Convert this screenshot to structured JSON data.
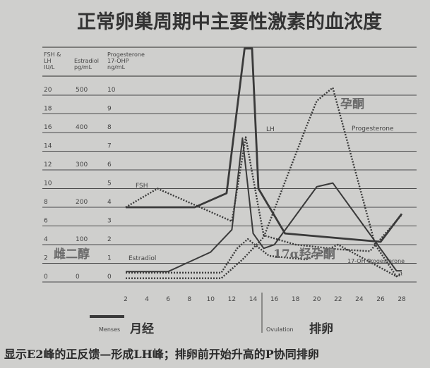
{
  "title": "正常卵巢周期中主要性激素的血浓度",
  "caption": "显示E2峰的正反馈—形成LH峰；排卵前开始升高的P协同排卵",
  "colors": {
    "background": "#cfcfcd",
    "ink": "#3a3a3a",
    "grid": "#4a4a4a",
    "overlay_text": "#6a6a6a"
  },
  "chart_data": {
    "type": "line",
    "xlabel": "",
    "x_ticks": [
      "2",
      "4",
      "6",
      "8",
      "10",
      "12",
      "14",
      "16",
      "18",
      "20",
      "22",
      "24",
      "26",
      "28"
    ],
    "xlim": [
      2,
      28
    ],
    "axes": [
      {
        "header": [
          "FSH &",
          "LH",
          "IU/L"
        ],
        "ticks": [
          "20",
          "18",
          "16",
          "14",
          "12",
          "10",
          "8",
          "6",
          "4",
          "2",
          "0"
        ],
        "ylim": [
          0,
          20
        ]
      },
      {
        "header": [
          "",
          "Estradiol",
          "pg/mL"
        ],
        "ticks": [
          "500",
          "",
          "400",
          "",
          "300",
          "",
          "200",
          "",
          "100",
          "",
          "0"
        ],
        "ylim": [
          0,
          500
        ]
      },
      {
        "header": [
          "Progesterone",
          "17-OHP",
          "ng/mL"
        ],
        "ticks": [
          "10",
          "9",
          "8",
          "7",
          "6",
          "5",
          "4",
          "3",
          "2",
          "1",
          "0"
        ],
        "ylim": [
          0,
          10
        ]
      }
    ],
    "grid": true,
    "series": [
      {
        "name": "LH",
        "axis": 0,
        "style": "solid",
        "points": [
          [
            2,
            8
          ],
          [
            8.5,
            8
          ],
          [
            11.5,
            9.5
          ],
          [
            13.2,
            25
          ],
          [
            13.9,
            25
          ],
          [
            14.5,
            10
          ],
          [
            17,
            5.2
          ],
          [
            26,
            4.3
          ],
          [
            28,
            7.3
          ]
        ]
      },
      {
        "name": "FSH",
        "axis": 0,
        "style": "dotted",
        "points": [
          [
            2,
            8
          ],
          [
            5,
            10
          ],
          [
            12,
            6.5
          ],
          [
            13.3,
            15.5
          ],
          [
            14.5,
            8
          ],
          [
            15,
            5
          ],
          [
            18,
            4
          ],
          [
            22,
            3.5
          ],
          [
            25,
            3.3
          ],
          [
            28,
            7.2
          ]
        ]
      },
      {
        "name": "Estradiol",
        "axis": 1,
        "style": "solid",
        "points": [
          [
            2,
            28
          ],
          [
            6,
            28
          ],
          [
            10,
            80
          ],
          [
            12,
            140
          ],
          [
            13,
            385
          ],
          [
            14,
            130
          ],
          [
            15,
            90
          ],
          [
            16,
            100
          ],
          [
            20,
            255
          ],
          [
            21.5,
            265
          ],
          [
            27.5,
            30
          ],
          [
            28,
            30
          ]
        ]
      },
      {
        "name": "Progesterone",
        "axis": 2,
        "style": "dotted",
        "points": [
          [
            2,
            0.2
          ],
          [
            11,
            0.2
          ],
          [
            13,
            1.2
          ],
          [
            15,
            2.4
          ],
          [
            19,
            8.3
          ],
          [
            20,
            9.7
          ],
          [
            21.5,
            10.4
          ],
          [
            25.5,
            2
          ],
          [
            27.5,
            0.3
          ],
          [
            28,
            0.4
          ]
        ]
      },
      {
        "name": "17-OH Progesterone",
        "axis": 2,
        "style": "dotted",
        "points": [
          [
            2,
            0.5
          ],
          [
            11,
            0.5
          ],
          [
            12.5,
            1.8
          ],
          [
            13.5,
            2.3
          ],
          [
            15.5,
            1.4
          ],
          [
            19,
            1.2
          ],
          [
            22,
            2
          ],
          [
            27.5,
            0.3
          ],
          [
            28,
            0.5
          ]
        ]
      }
    ],
    "annotations": {
      "lh_label": "LH",
      "fsh_label": "FSH",
      "estradiol_label": "Estradiol",
      "progesterone_label": "Progesterone",
      "ohp_label": "17-OH Progesterone",
      "estradiol_cn": "雌二醇",
      "progesterone_cn": "孕酮",
      "ohp_cn": "17α羟孕酮",
      "menses": "Menses",
      "menses_cn": "月经",
      "ovulation": "Ovulation",
      "ovulation_cn": "排卵"
    }
  }
}
